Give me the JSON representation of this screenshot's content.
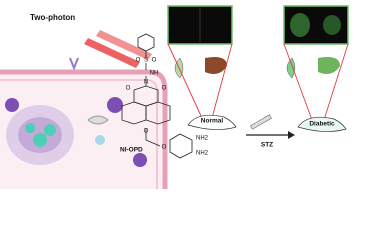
{
  "labels": {
    "two_photon": "Two-photon",
    "normal": "Normal",
    "stz": "STZ",
    "diabetic": "Diabetic",
    "probe": "NI-OPD"
  },
  "structure_atoms": [
    "S",
    "O",
    "O",
    "NH",
    "N",
    "O",
    "O",
    "O",
    "O",
    "NH2",
    "NH2"
  ]
}
